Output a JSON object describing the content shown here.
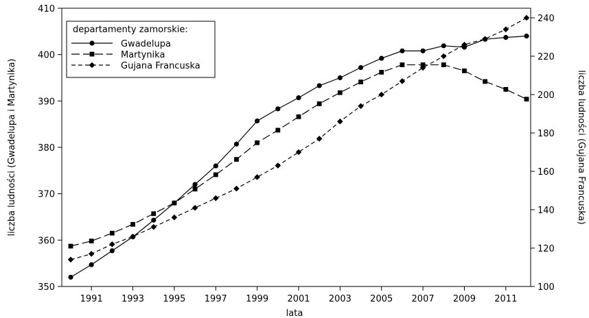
{
  "chart_data": {
    "type": "line",
    "xlabel": "lata",
    "ylabel_left": "liczba ludności (Gwadelupa i Martynika)",
    "ylabel_right": "liczba ludności (Gujana Francuska)",
    "x": [
      1990,
      1991,
      1992,
      1993,
      1994,
      1995,
      1996,
      1997,
      1998,
      1999,
      2000,
      2001,
      2002,
      2003,
      2004,
      2005,
      2006,
      2007,
      2008,
      2009,
      2010,
      2011,
      2012
    ],
    "x_ticks": [
      "1991",
      "1993",
      "1995",
      "1997",
      "1999",
      "2001",
      "2003",
      "2005",
      "2007",
      "2009",
      "2011"
    ],
    "y_left_ticks": [
      "350",
      "360",
      "370",
      "380",
      "390",
      "400",
      "410"
    ],
    "y_right_ticks": [
      "100",
      "120",
      "140",
      "160",
      "180",
      "200",
      "220",
      "240"
    ],
    "ylim_left": [
      350,
      410
    ],
    "ylim_right": [
      100,
      245
    ],
    "legend": {
      "title": "departamenty zamorskie:",
      "position": "top-left"
    },
    "series": [
      {
        "name": "Gwadelupa",
        "axis": "left",
        "marker": "circle",
        "dash": "solid",
        "values": [
          352.0,
          354.7,
          357.7,
          360.7,
          364.3,
          368.0,
          372.0,
          376.0,
          380.7,
          385.7,
          388.3,
          390.7,
          393.3,
          395.0,
          397.2,
          399.2,
          400.8,
          400.8,
          401.9,
          401.6,
          403.3,
          403.7,
          404.0
        ]
      },
      {
        "name": "Martynika",
        "axis": "left",
        "marker": "square",
        "dash": "dashed",
        "values": [
          358.7,
          359.8,
          361.5,
          363.4,
          365.7,
          368.0,
          371.0,
          374.1,
          377.4,
          381.0,
          383.7,
          386.6,
          389.4,
          391.8,
          394.1,
          396.2,
          397.8,
          397.8,
          397.8,
          396.5,
          394.2,
          392.5,
          390.4
        ]
      },
      {
        "name": "Gujana Francuska",
        "axis": "right",
        "marker": "diamond",
        "dash": "dashed",
        "values": [
          114,
          117,
          122,
          126,
          131,
          136,
          141,
          146,
          151,
          157,
          163,
          170,
          177,
          186,
          194,
          200,
          207,
          214,
          220,
          226,
          229,
          234,
          240
        ]
      }
    ],
    "colors": {
      "line": "#000000",
      "background": "#ffffff"
    }
  }
}
